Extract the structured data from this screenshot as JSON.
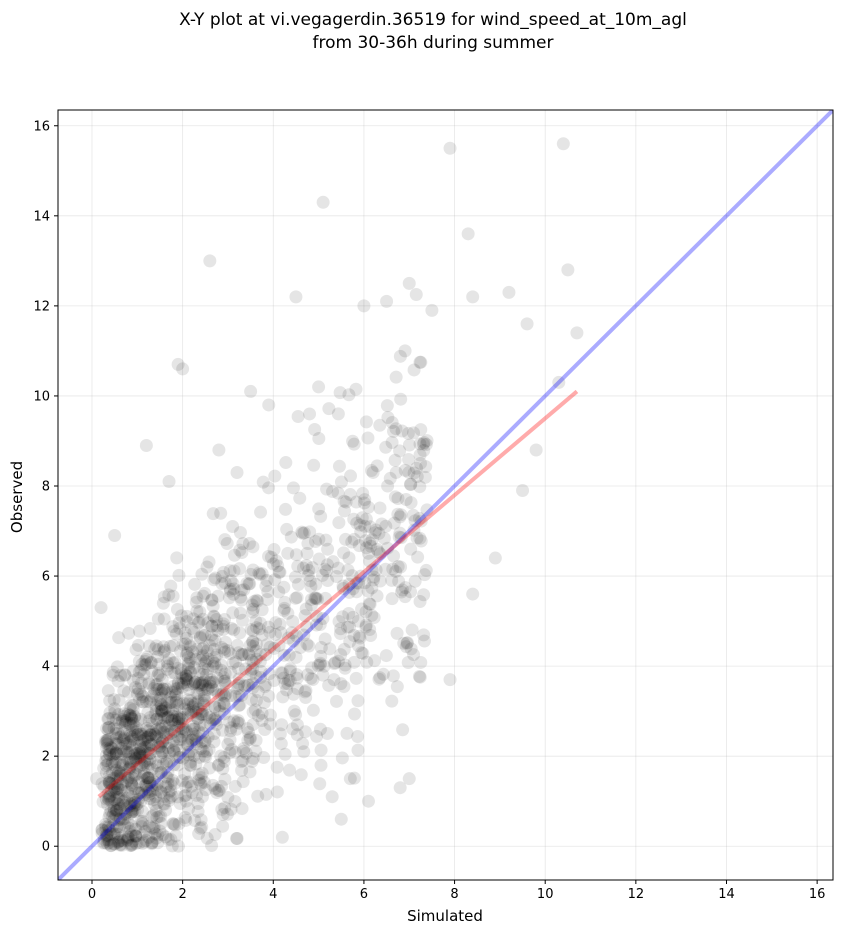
{
  "chart_data": {
    "type": "scatter",
    "title": [
      "X-Y plot at vi.vegagerdin.36519 for wind_speed_at_10m_agl",
      "from 30-36h during summer"
    ],
    "xlabel": "Simulated",
    "ylabel": "Observed",
    "xlim": [
      -0.75,
      16.35
    ],
    "ylim": [
      -0.75,
      16.35
    ],
    "xticks": [
      0,
      2,
      4,
      6,
      8,
      10,
      12,
      14,
      16
    ],
    "yticks": [
      0,
      2,
      4,
      6,
      8,
      10,
      12,
      14,
      16
    ],
    "grid": true,
    "point_style": {
      "color": "#000000",
      "opacity": 0.1
    },
    "outlier_points": {
      "x": [
        7.9,
        10.4,
        5.1,
        8.3,
        2.6,
        4.5,
        7.0,
        10.5,
        8.4,
        9.2,
        6.0,
        7.5,
        6.5,
        1.9,
        2.0,
        3.5,
        3.9,
        5.0,
        4.8,
        3.2,
        2.8,
        1.7,
        9.6,
        10.7,
        10.3,
        9.8,
        0.5,
        0.2,
        7.9,
        8.4,
        8.9,
        9.5,
        7.0,
        6.8,
        5.5,
        4.2,
        5.7,
        6.1,
        5.3,
        0.1,
        1.2
      ],
      "y": [
        15.5,
        15.6,
        14.3,
        13.6,
        13.0,
        12.2,
        12.5,
        12.8,
        12.2,
        12.3,
        12.0,
        11.9,
        12.1,
        10.7,
        10.6,
        10.1,
        9.8,
        10.2,
        9.6,
        8.3,
        8.8,
        8.1,
        11.6,
        11.4,
        10.3,
        8.8,
        6.9,
        5.3,
        3.7,
        5.6,
        6.4,
        7.9,
        1.5,
        1.3,
        0.6,
        0.2,
        1.5,
        1.0,
        1.1,
        1.5,
        8.9
      ]
    },
    "cloud": {
      "n": 1500,
      "x_range": [
        0.1,
        10.7
      ],
      "y_range": [
        0,
        13.5
      ],
      "description": "dense cloud around the fit line"
    },
    "series": [
      {
        "name": "",
        "type": "line",
        "x": [
          -0.75,
          16.35
        ],
        "y": [
          -0.75,
          16.35
        ],
        "color": "#0000ff",
        "opacity": 0.33
      },
      {
        "name": "",
        "type": "line",
        "x": [
          0.15,
          10.7
        ],
        "y": [
          1.1,
          10.1
        ],
        "color": "#ff0000",
        "opacity": 0.33
      }
    ]
  }
}
